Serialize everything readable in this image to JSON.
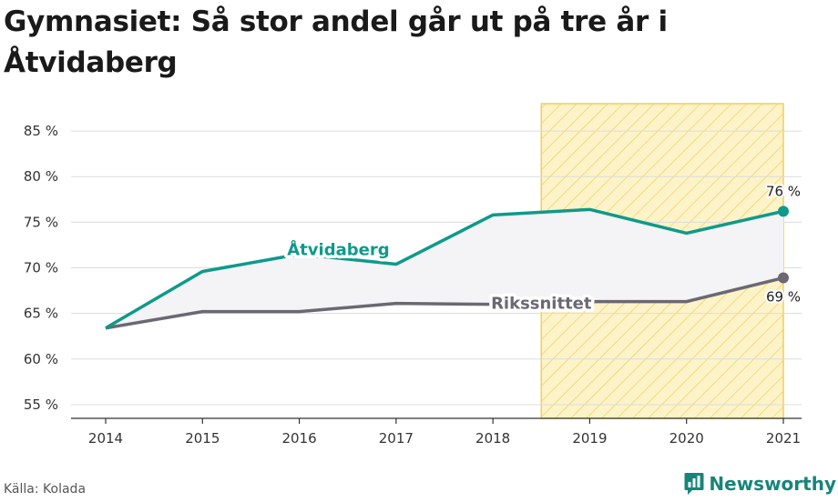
{
  "title": "Gymnasiet: Så stor andel går ut på tre år i Åtvidaberg",
  "source": "Källa: Kolada",
  "brand": "Newsworthy",
  "colors": {
    "primary": "#0e9a8a",
    "secondary": "#6b6873",
    "fill_between": "#f4f3f5",
    "highlight_fill": "#fdf3c9",
    "highlight_stroke": "#f1ce59",
    "grid": "#dcdcdc"
  },
  "chart_data": {
    "type": "line",
    "categories": [
      "2014",
      "2015",
      "2016",
      "2017",
      "2018",
      "2019",
      "2020",
      "2021"
    ],
    "series": [
      {
        "name": "Åtvidaberg",
        "values": [
          63.4,
          69.6,
          71.5,
          70.4,
          75.8,
          76.4,
          73.8,
          76.2
        ]
      },
      {
        "name": "Rikssnittet",
        "values": [
          63.4,
          65.2,
          65.2,
          66.1,
          66.0,
          66.3,
          66.3,
          68.9
        ]
      }
    ],
    "yticks": [
      "55 %",
      "60 %",
      "65 %",
      "70 %",
      "75 %",
      "80 %",
      "85 %"
    ],
    "ylim": [
      53.5,
      88
    ],
    "end_labels": [
      "76 %",
      "69 %"
    ],
    "highlight_range": [
      "2019",
      "2021"
    ],
    "grid": true
  }
}
